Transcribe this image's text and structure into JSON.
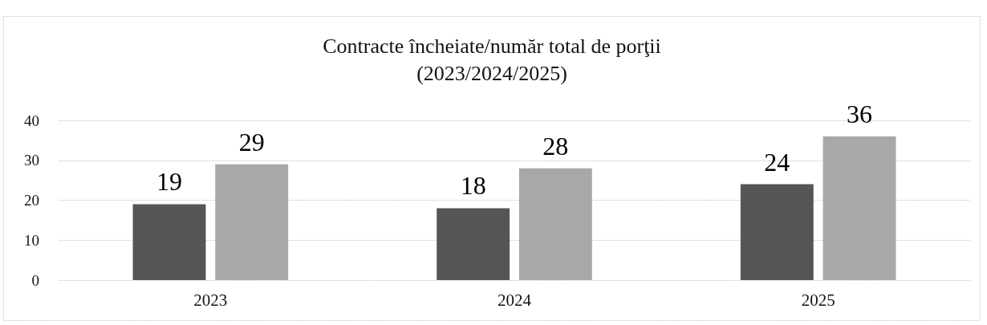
{
  "chart_data": {
    "type": "bar",
    "title": "Contracte încheiate/număr total de porţii\n(2023/2024/2025)",
    "categories": [
      "2023",
      "2024",
      "2025"
    ],
    "series": [
      {
        "color": "#555555",
        "values": [
          19,
          18,
          24
        ]
      },
      {
        "color": "#a8a8a8",
        "values": [
          29,
          28,
          36
        ]
      }
    ],
    "ylim": [
      0,
      40
    ],
    "yticks": [
      0,
      10,
      20,
      30,
      40
    ],
    "grid": "y",
    "data_labels": true
  }
}
